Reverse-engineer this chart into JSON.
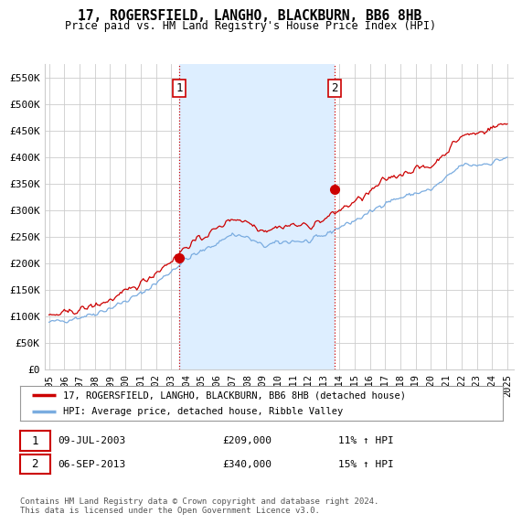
{
  "title": "17, ROGERSFIELD, LANGHO, BLACKBURN, BB6 8HB",
  "subtitle": "Price paid vs. HM Land Registry's House Price Index (HPI)",
  "ylim": [
    0,
    575000
  ],
  "ytick_labels": [
    "£0",
    "£50K",
    "£100K",
    "£150K",
    "£200K",
    "£250K",
    "£300K",
    "£350K",
    "£400K",
    "£450K",
    "£500K",
    "£550K"
  ],
  "ytick_vals": [
    0,
    50000,
    100000,
    150000,
    200000,
    250000,
    300000,
    350000,
    400000,
    450000,
    500000,
    550000
  ],
  "sale1_date": 2003.53,
  "sale1_price": 209000,
  "sale1_label": "1",
  "sale2_date": 2013.68,
  "sale2_price": 340000,
  "sale2_label": "2",
  "line1_color": "#cc0000",
  "line2_color": "#7aace0",
  "shade_color": "#ddeeff",
  "marker_color": "#cc0000",
  "vline_color": "#cc0000",
  "legend_line1": "17, ROGERSFIELD, LANGHO, BLACKBURN, BB6 8HB (detached house)",
  "legend_line2": "HPI: Average price, detached house, Ribble Valley",
  "annotation1_text": "09-JUL-2003",
  "annotation1_price": "£209,000",
  "annotation1_hpi": "11% ↑ HPI",
  "annotation2_text": "06-SEP-2013",
  "annotation2_price": "£340,000",
  "annotation2_hpi": "15% ↑ HPI",
  "footer": "Contains HM Land Registry data © Crown copyright and database right 2024.\nThis data is licensed under the Open Government Licence v3.0.",
  "bg_color": "#ffffff",
  "plot_bg_color": "#ffffff",
  "grid_color": "#cccccc"
}
